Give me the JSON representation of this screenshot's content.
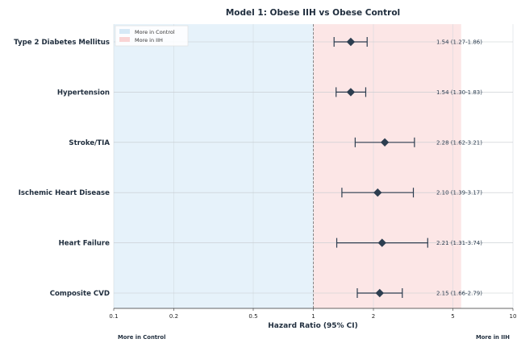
{
  "chart_data": {
    "type": "forest",
    "title": "Model 1: Obese IIH vs Obese Control",
    "xlabel": "Hazard Ratio (95% CI)",
    "x_scale": "log",
    "xlim": [
      0.1,
      10
    ],
    "x_ticks": [
      "0.1",
      "0.2",
      "0.5",
      "1",
      "2",
      "5",
      "10"
    ],
    "reference_line": 1,
    "shaded_upper_hr": 5.5,
    "legend": [
      {
        "label": "More in Control",
        "color": "#e6f2fa"
      },
      {
        "label": "More in IIH",
        "color": "#fce6e6"
      }
    ],
    "left_region_label": "More in Control",
    "right_region_label": "More in IIH",
    "marker_color": "#2c3e50",
    "rows": [
      {
        "label": "Type 2 Diabetes Mellitus",
        "hr": 1.54,
        "lower": 1.27,
        "upper": 1.86,
        "text": "1.54 (1.27-1.86)"
      },
      {
        "label": "Hypertension",
        "hr": 1.54,
        "lower": 1.3,
        "upper": 1.83,
        "text": "1.54 (1.30-1.83)"
      },
      {
        "label": "Stroke/TIA",
        "hr": 2.28,
        "lower": 1.62,
        "upper": 3.21,
        "text": "2.28 (1.62-3.21)"
      },
      {
        "label": "Ischemic Heart Disease",
        "hr": 2.1,
        "lower": 1.39,
        "upper": 3.17,
        "text": "2.10 (1.39-3.17)"
      },
      {
        "label": "Heart Failure",
        "hr": 2.21,
        "lower": 1.31,
        "upper": 3.74,
        "text": "2.21 (1.31-3.74)"
      },
      {
        "label": "Composite CVD",
        "hr": 2.15,
        "lower": 1.66,
        "upper": 2.79,
        "text": "2.15 (1.66-2.79)"
      }
    ]
  }
}
